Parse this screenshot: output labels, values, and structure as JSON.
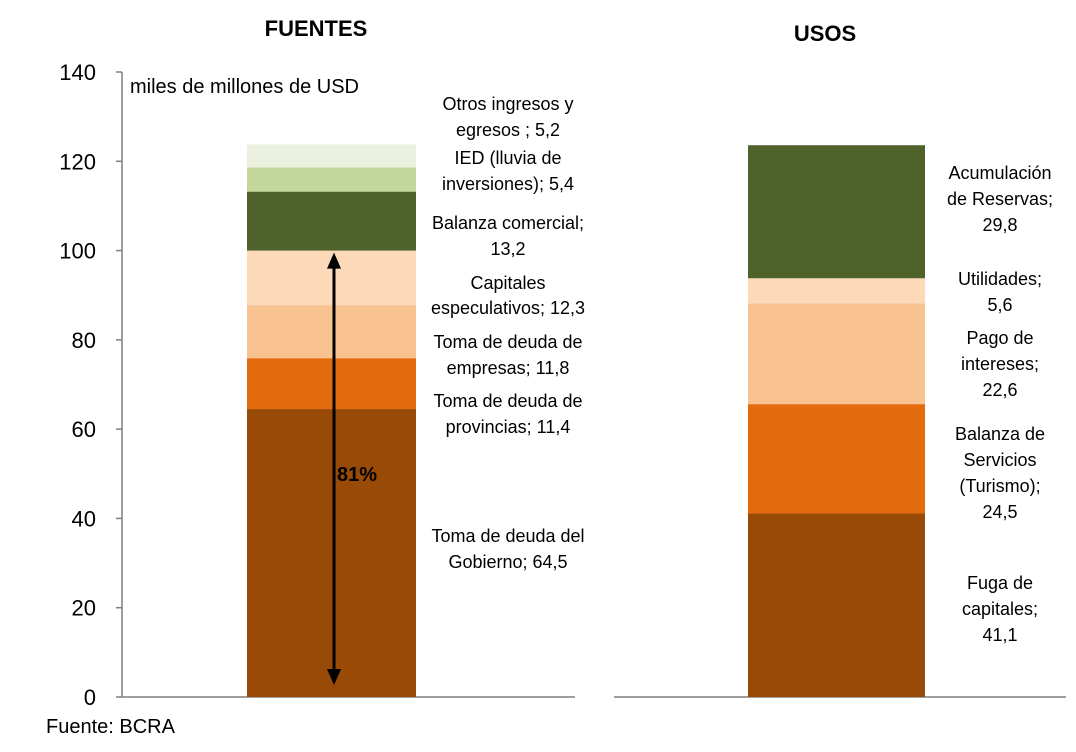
{
  "chart_data": {
    "type": "bar",
    "stacked": true,
    "unit_label": "miles de millones de USD",
    "source": "Fuente: BCRA",
    "ylim": [
      0,
      140
    ],
    "yticks": [
      "0",
      "20",
      "40",
      "60",
      "80",
      "100",
      "120",
      "140"
    ],
    "bracket_label": "81%",
    "panels": [
      {
        "title": "FUENTES",
        "segments": [
          {
            "name": "Toma de deuda del Gobierno",
            "value": 64.5,
            "label": [
              "Toma de deuda del",
              "Gobierno; 64,5"
            ],
            "color": "#994a07"
          },
          {
            "name": "Toma de deuda de provincias",
            "value": 11.4,
            "label": [
              "Toma de deuda de",
              "provincias; 11,4"
            ],
            "color": "#e36b0e"
          },
          {
            "name": "Toma de deuda de empresas",
            "value": 11.8,
            "label": [
              "Toma de deuda de",
              "empresas; 11,8"
            ],
            "color": "#f9c291"
          },
          {
            "name": "Capitales especulativos",
            "value": 12.3,
            "label": [
              "Capitales",
              "especulativos; 12,3"
            ],
            "color": "#fcd9b9"
          },
          {
            "name": "Balanza comercial",
            "value": 13.2,
            "label": [
              "Balanza comercial;",
              "13,2"
            ],
            "color": "#4f6229"
          },
          {
            "name": "IED (lluvia de inversiones)",
            "value": 5.4,
            "label": [
              "IED (lluvia de",
              "inversiones); 5,4"
            ],
            "color": "#c3d69b"
          },
          {
            "name": "Otros ingresos y egresos",
            "value": 5.2,
            "label": [
              "Otros ingresos y",
              "egresos ; 5,2"
            ],
            "color": "#ebf1de"
          }
        ]
      },
      {
        "title": "USOS",
        "segments": [
          {
            "name": "Fuga de capitales",
            "value": 41.1,
            "label": [
              "Fuga de",
              "capitales;",
              "41,1"
            ],
            "color": "#994a07"
          },
          {
            "name": "Balanza de Servicios (Turismo)",
            "value": 24.5,
            "label": [
              "Balanza de",
              "Servicios",
              "(Turismo);",
              "24,5"
            ],
            "color": "#e36b0e"
          },
          {
            "name": "Pago de intereses",
            "value": 22.6,
            "label": [
              "Pago de",
              "intereses;",
              "22,6"
            ],
            "color": "#f9c291"
          },
          {
            "name": "Utilidades",
            "value": 5.6,
            "label": [
              "Utilidades;",
              "5,6"
            ],
            "color": "#fcd9b9"
          },
          {
            "name": "Acumulación de Reservas",
            "value": 29.8,
            "label": [
              "Acumulación",
              "de Reservas;",
              "29,8"
            ],
            "color": "#4f6229"
          }
        ]
      }
    ]
  }
}
